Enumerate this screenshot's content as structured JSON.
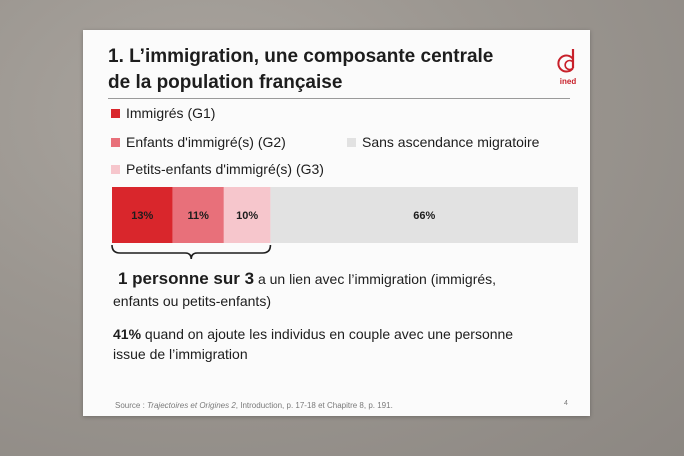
{
  "slide": {
    "title_line1": "1. L’immigration, une composante centrale",
    "title_line2": "de la population française",
    "logo_text": "ined",
    "page_number": "4"
  },
  "legend": {
    "g1": "Immigrés (G1)",
    "g2": "Enfants d'immigré(s) (G2)",
    "none": "Sans ascendance migratoire",
    "g3": "Petits-enfants d'immigré(s) (G3)"
  },
  "summary": {
    "line1_bold": "1 personne sur 3",
    "line1_rest": " a un lien avec l’immigration (immigrés,",
    "line2": "enfants ou petits-enfants)",
    "p2_bold": "41%",
    "p2_rest": " quand on ajoute les individus en couple avec une personne",
    "p2_line2": "issue de l’immigration"
  },
  "source": {
    "prefix": "Source : ",
    "title": "Trajectoires et Origines 2",
    "suffix": ", Introduction, p. 17-18 et Chapitre 8, p. 191."
  },
  "chart_data": {
    "type": "bar",
    "orientation": "horizontal-stacked",
    "categories": [
      ""
    ],
    "series": [
      {
        "name": "Immigrés (G1)",
        "values": [
          13
        ],
        "label": "13%",
        "color": "#d9262c"
      },
      {
        "name": "Enfants d'immigré(s) (G2)",
        "values": [
          11
        ],
        "label": "11%",
        "color": "#e8707a"
      },
      {
        "name": "Petits-enfants d'immigré(s) (G3)",
        "values": [
          10
        ],
        "label": "10%",
        "color": "#f6c6cc"
      },
      {
        "name": "Sans ascendance migratoire",
        "values": [
          66
        ],
        "label": "66%",
        "color": "#e2e2e2"
      }
    ],
    "xlim": [
      0,
      100
    ],
    "legend_position": "top-left"
  }
}
